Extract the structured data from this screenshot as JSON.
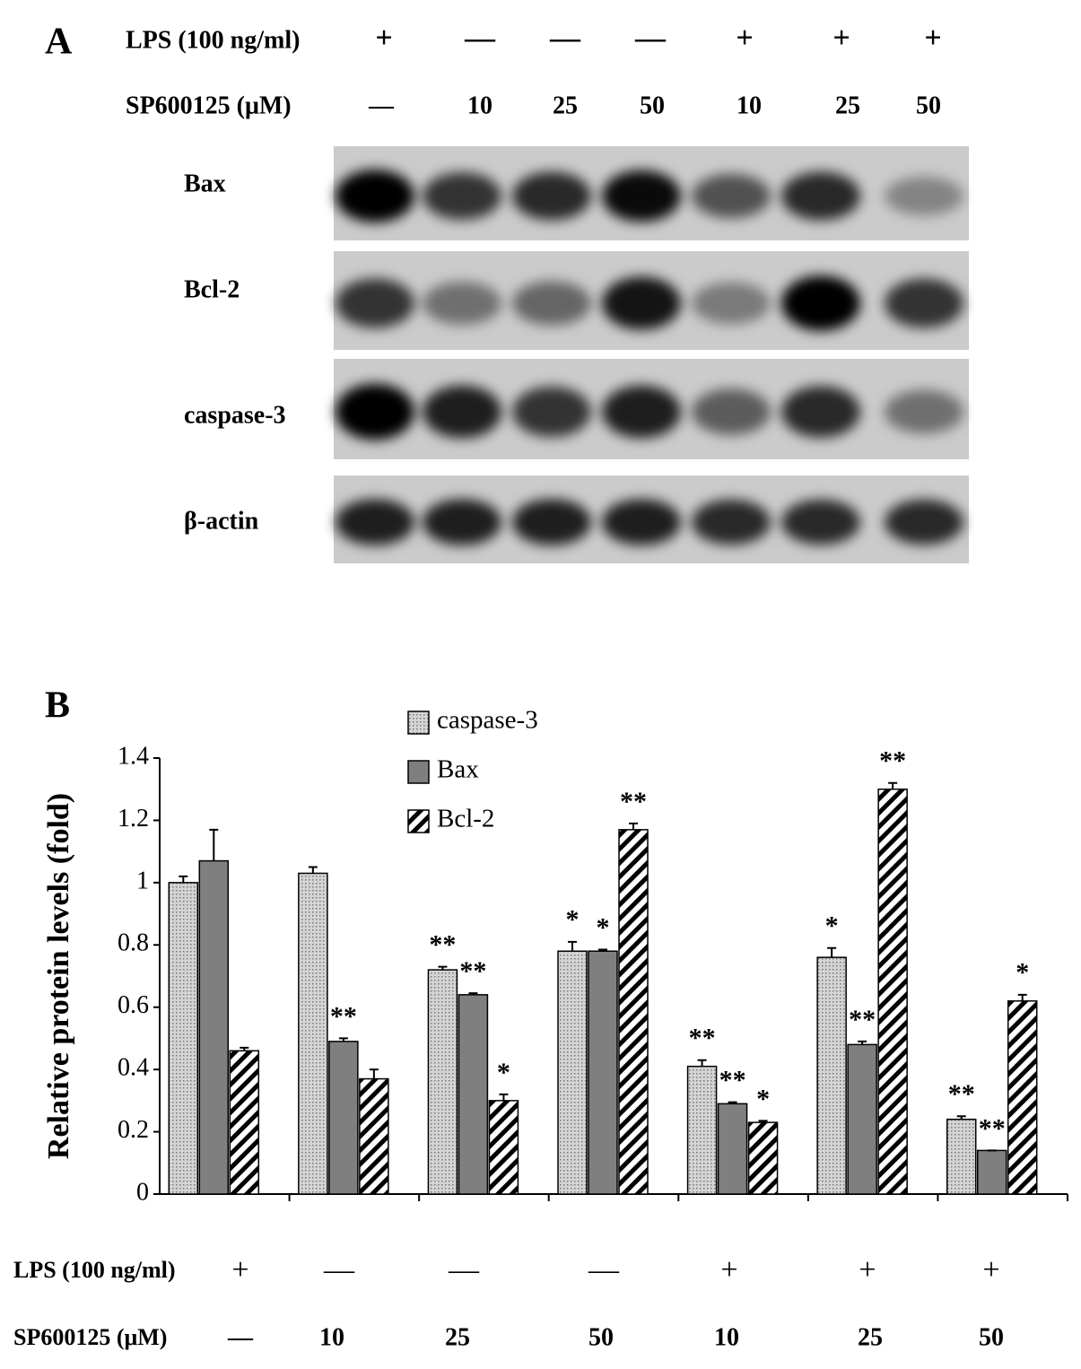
{
  "panel_a": {
    "letter": "A",
    "lps": {
      "label": "LPS (100 ng/ml)",
      "values": [
        "+",
        "—",
        "—",
        "—",
        "+",
        "+",
        "+"
      ]
    },
    "sp": {
      "label": "SP600125 (μM)",
      "values": [
        "—",
        "10",
        "25",
        "50",
        "10",
        "25",
        "50"
      ]
    },
    "bands": [
      "Bax",
      "Bcl-2",
      "caspase-3",
      "β-actin"
    ]
  },
  "chart_data": {
    "type": "bar",
    "letter": "B",
    "ylabel": "Relative protein levels (fold)",
    "categories": [
      null,
      null,
      null,
      null,
      null,
      null,
      null
    ],
    "ylim": [
      0,
      1.4
    ],
    "yticks": [
      0,
      0.2,
      0.4,
      0.6,
      0.8,
      1,
      1.2,
      1.4
    ],
    "series": [
      {
        "name": "caspase-3",
        "color": "#d4d4d4",
        "pattern": "dots",
        "values": [
          1.0,
          1.03,
          0.72,
          0.78,
          0.41,
          0.76,
          0.24
        ],
        "errors": [
          0.02,
          0.02,
          0.01,
          0.03,
          0.02,
          0.03,
          0.01
        ],
        "significance": [
          null,
          null,
          "**",
          "*",
          "**",
          "*",
          "**"
        ]
      },
      {
        "name": "Bax",
        "color": "#7f7f7f",
        "pattern": "solid",
        "values": [
          1.07,
          0.49,
          0.64,
          0.78,
          0.29,
          0.48,
          0.14
        ],
        "errors": [
          0.1,
          0.01,
          0.005,
          0.005,
          0.005,
          0.01,
          0
        ],
        "significance": [
          null,
          "**",
          "**",
          "*",
          "**",
          "**",
          "**"
        ]
      },
      {
        "name": "Bcl-2",
        "color": "#000000",
        "pattern": "hatch",
        "values": [
          0.46,
          0.37,
          0.3,
          1.17,
          0.23,
          1.3,
          0.62
        ],
        "errors": [
          0.01,
          0.03,
          0.02,
          0.02,
          0.005,
          0.02,
          0.02
        ],
        "significance": [
          null,
          null,
          "*",
          "**",
          "*",
          "**",
          "*"
        ]
      }
    ],
    "lps": {
      "label": "LPS (100 ng/ml)",
      "values": [
        "+",
        "—",
        "—",
        "—",
        "+",
        "+",
        "+"
      ]
    },
    "sp": {
      "label": "SP600125 (μM)",
      "values": [
        "—",
        "10",
        "25",
        "50",
        "10",
        "25",
        "50"
      ]
    }
  }
}
